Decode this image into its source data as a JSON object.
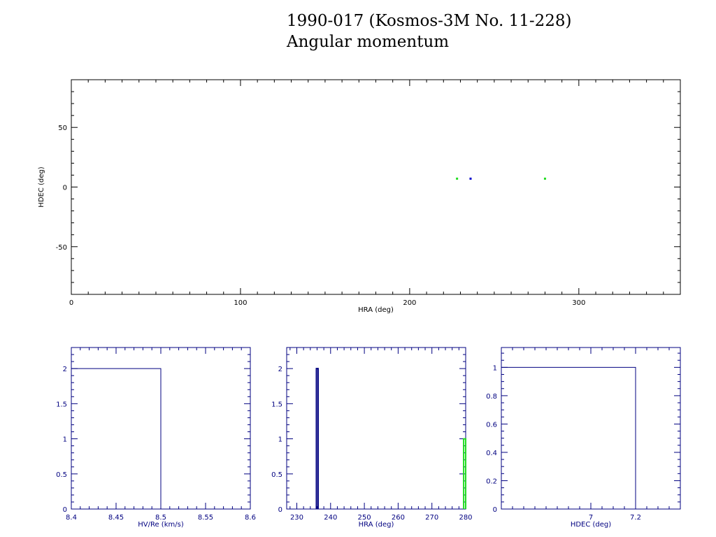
{
  "title_line1": "1990-017 (Kosmos-3M No. 11-228)",
  "title_line2": "Angular momentum",
  "colors": {
    "axis_black": "#000000",
    "axis_blue": "#000080",
    "series_blue": "#0000cc",
    "series_green": "#22dd22"
  },
  "chart_data": [
    {
      "type": "scatter",
      "xlabel": "HRA (deg)",
      "ylabel": "HDEC (deg)",
      "xlim": [
        0,
        360
      ],
      "ylim": [
        -90,
        90
      ],
      "xticks": [
        "0",
        "100",
        "200",
        "300"
      ],
      "yticks": [
        "-50",
        "0",
        "50"
      ],
      "grid": false,
      "series": [
        {
          "color": "#22dd22",
          "points": [
            [
              228,
              7
            ],
            [
              280,
              7
            ]
          ]
        },
        {
          "color": "#0000cc",
          "points": [
            [
              236,
              7
            ]
          ]
        }
      ]
    },
    {
      "type": "bar",
      "xlabel": "HV/Re (km/s)",
      "xlim": [
        8.4,
        8.6
      ],
      "ylim": [
        0,
        2.3
      ],
      "xticks": [
        "8.4",
        "8.45",
        "8.5",
        "8.55",
        "8.6"
      ],
      "yticks": [
        "0",
        "0.5",
        "1",
        "1.5",
        "2"
      ],
      "series": [
        {
          "color": "#000080",
          "bins": [
            [
              8.4,
              8.5,
              2
            ]
          ]
        }
      ]
    },
    {
      "type": "bar",
      "xlabel": "HRA (deg)",
      "xlim": [
        227,
        280
      ],
      "ylim": [
        0,
        2.3
      ],
      "xticks": [
        "230",
        "240",
        "250",
        "260",
        "270",
        "280"
      ],
      "yticks": [
        "0",
        "0.5",
        "1",
        "1.5",
        "2"
      ],
      "series": [
        {
          "color": "#000080",
          "bins": [
            [
              235.8,
              236.3,
              2
            ]
          ]
        },
        {
          "color": "#22dd22",
          "bins": [
            [
              279.4,
              280,
              1
            ]
          ]
        }
      ]
    },
    {
      "type": "bar",
      "xlabel": "HDEC (deg)",
      "xlim": [
        6.6,
        7.4
      ],
      "ylim": [
        0,
        1.14
      ],
      "xticks": [
        "7",
        "7.2"
      ],
      "yticks": [
        "0",
        "0.2",
        "0.4",
        "0.6",
        "0.8",
        "1"
      ],
      "series": [
        {
          "color": "#000080",
          "bins": [
            [
              6.6,
              7.2,
              1
            ]
          ]
        }
      ]
    }
  ]
}
